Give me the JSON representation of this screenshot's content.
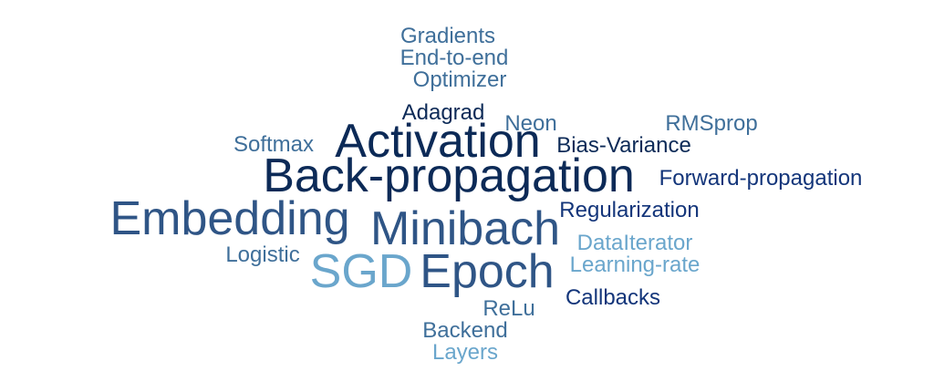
{
  "word_cloud": {
    "words": [
      {
        "key": "gradients",
        "text": "Gradients",
        "color": "#3f6f9a"
      },
      {
        "key": "endtoend",
        "text": "End-to-end",
        "color": "#3f6f9a"
      },
      {
        "key": "optimizer",
        "text": "Optimizer",
        "color": "#3f6f9a"
      },
      {
        "key": "adagrad",
        "text": "Adagrad",
        "color": "#0c2a57"
      },
      {
        "key": "neon",
        "text": "Neon",
        "color": "#3f6f9a"
      },
      {
        "key": "rmsprop",
        "text": "RMSprop",
        "color": "#3f6f9a"
      },
      {
        "key": "softmax",
        "text": "Softmax",
        "color": "#3f6f9a"
      },
      {
        "key": "activation",
        "text": "Activation",
        "color": "#0c2a57"
      },
      {
        "key": "biasvariance",
        "text": "Bias-Variance",
        "color": "#0c2a57"
      },
      {
        "key": "backprop",
        "text": "Back-propagation",
        "color": "#0c2a57"
      },
      {
        "key": "forwardprop",
        "text": "Forward-propagation",
        "color": "#13357a"
      },
      {
        "key": "embedding",
        "text": "Embedding",
        "color": "#2f5586"
      },
      {
        "key": "minibach",
        "text": "Minibach",
        "color": "#2f5586"
      },
      {
        "key": "regularization",
        "text": "Regularization",
        "color": "#13357a"
      },
      {
        "key": "dataiterator",
        "text": "DataIterator",
        "color": "#6aa6cc"
      },
      {
        "key": "logistic",
        "text": "Logistic",
        "color": "#3f6f9a"
      },
      {
        "key": "sgd",
        "text": "SGD",
        "color": "#6aa6cc"
      },
      {
        "key": "epoch",
        "text": "Epoch",
        "color": "#2f5586"
      },
      {
        "key": "learningrate",
        "text": "Learning-rate",
        "color": "#6aa6cc"
      },
      {
        "key": "callbacks",
        "text": "Callbacks",
        "color": "#13357a"
      },
      {
        "key": "relu",
        "text": "ReLu",
        "color": "#3f6f9a"
      },
      {
        "key": "backend",
        "text": "Backend",
        "color": "#3f6f9a"
      },
      {
        "key": "layers",
        "text": "Layers",
        "color": "#6aa6cc"
      }
    ]
  }
}
